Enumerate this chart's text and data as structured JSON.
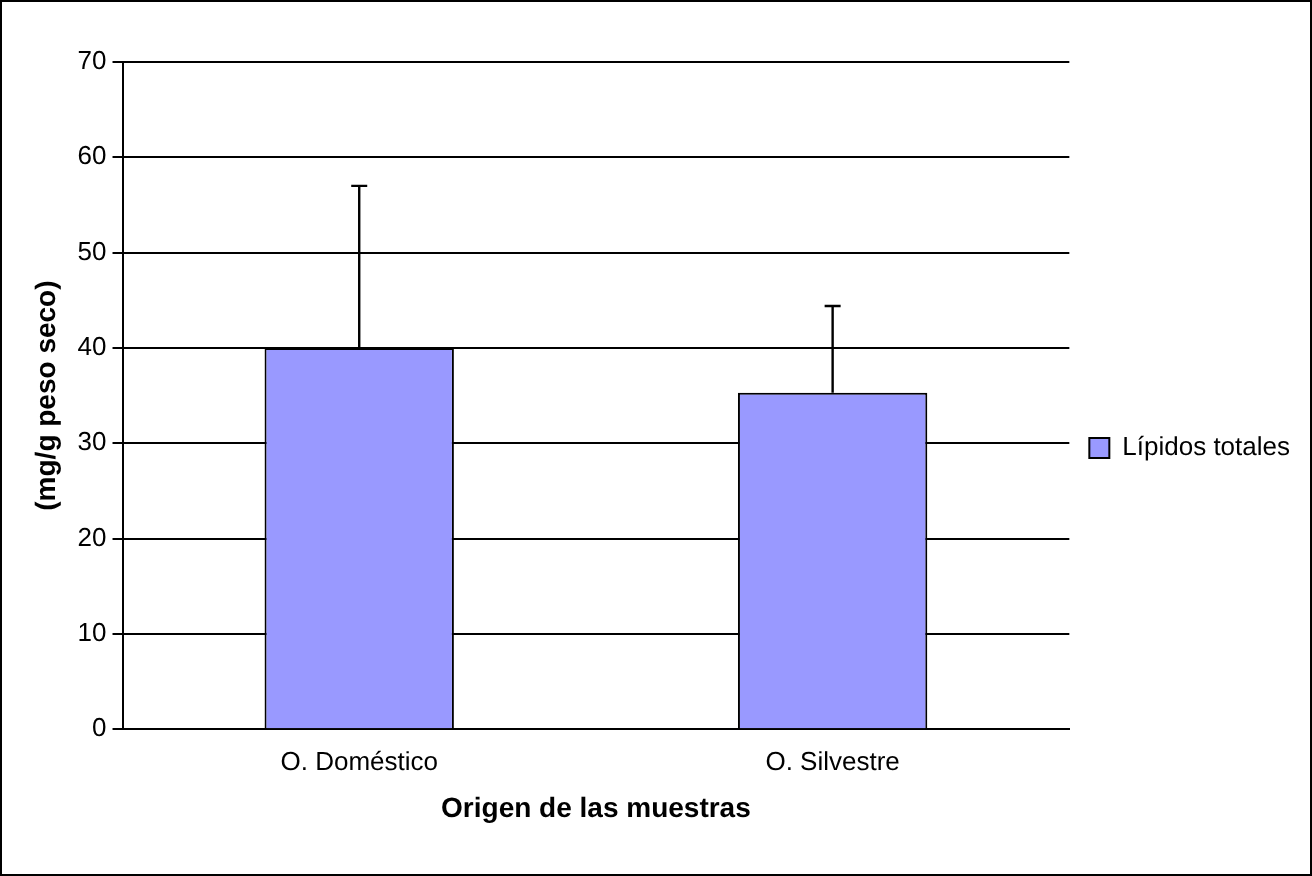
{
  "chart_data": {
    "type": "bar",
    "xlabel": "Origen de las muestras",
    "ylabel": "(mg/g peso seco)",
    "categories": [
      "O. Doméstico",
      "O. Silvestre"
    ],
    "series": [
      {
        "name": "Lípidos totales",
        "color": "#9999ff",
        "values": [
          40,
          35.3
        ],
        "errors": [
          [
            40,
            57
          ],
          [
            35.3,
            44.4
          ]
        ]
      }
    ],
    "ylim": [
      0,
      70
    ],
    "yticks": [
      0,
      10,
      20,
      30,
      40,
      50,
      60,
      70
    ],
    "grid": "y",
    "legend": "right"
  }
}
